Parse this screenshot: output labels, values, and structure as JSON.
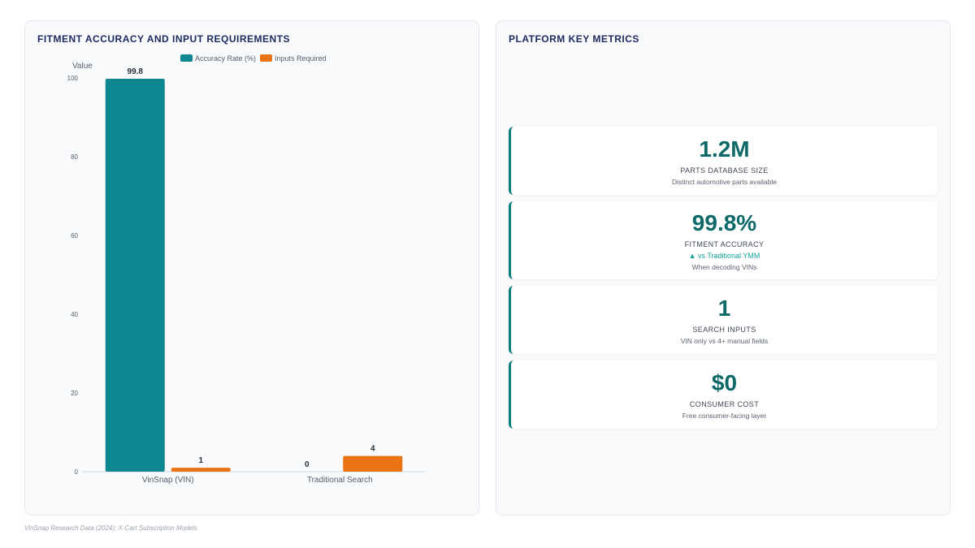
{
  "chart_panel": {
    "title": "FITMENT ACCURACY AND INPUT REQUIREMENTS"
  },
  "metrics_panel": {
    "title": "PLATFORM KEY METRICS",
    "cards": [
      {
        "value": "1.2M",
        "label": "PARTS DATABASE SIZE",
        "trend": "",
        "sub": "Distinct automotive parts available"
      },
      {
        "value": "99.8%",
        "label": "FITMENT ACCURACY",
        "trend": "▲ vs Traditional YMM",
        "sub": "When decoding VINs"
      },
      {
        "value": "1",
        "label": "SEARCH INPUTS",
        "trend": "",
        "sub": "VIN only vs 4+ manual fields"
      },
      {
        "value": "$0",
        "label": "CONSUMER COST",
        "trend": "",
        "sub": "Free consumer-facing layer"
      }
    ]
  },
  "footer": "VinSnap Research Data (2024); X-Cart Subscription Models",
  "colors": {
    "accent_teal": "#0f8790",
    "accent_orange": "#ea7414",
    "metric_value": "#0d6868"
  },
  "chart_data": {
    "type": "bar",
    "title": "FITMENT ACCURACY AND INPUT REQUIREMENTS",
    "xlabel": "",
    "ylabel": "Value",
    "ylim": [
      0,
      100
    ],
    "yticks": [
      0,
      20,
      40,
      60,
      80,
      100
    ],
    "categories": [
      "VinSnap (VIN)",
      "Traditional Search"
    ],
    "series": [
      {
        "name": "Accuracy Rate (%)",
        "color": "#0f8790",
        "values": [
          99.8,
          0
        ]
      },
      {
        "name": "Inputs Required",
        "color": "#ea7414",
        "values": [
          1,
          4
        ]
      }
    ],
    "data_labels": [
      [
        "99.8",
        "1"
      ],
      [
        "0",
        "4"
      ]
    ],
    "legend_position": "top-center",
    "grid": false
  }
}
